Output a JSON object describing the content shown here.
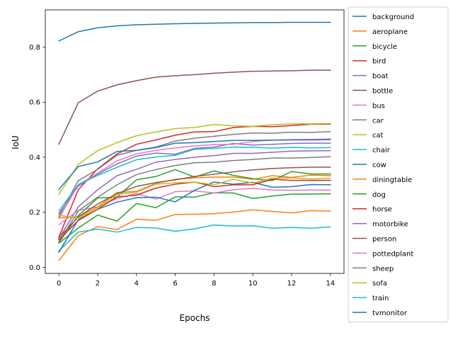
{
  "chart_data": {
    "type": "line",
    "xlabel": "Epochs",
    "ylabel": "IoU",
    "xlim": [
      -0.7,
      14.7
    ],
    "ylim": [
      -0.022,
      0.935
    ],
    "xticks": [
      0,
      2,
      4,
      6,
      8,
      10,
      12,
      14
    ],
    "yticks": [
      0.0,
      0.2,
      0.4,
      0.6,
      0.8
    ],
    "ytick_labels": [
      "0.0",
      "0.2",
      "0.4",
      "0.6",
      "0.8"
    ],
    "grid": false,
    "legend_position": "outside-right",
    "x": [
      0,
      1,
      2,
      3,
      4,
      5,
      6,
      7,
      8,
      9,
      10,
      11,
      12,
      13,
      14
    ],
    "series": [
      {
        "name": "background",
        "color": "#1f77b4",
        "values": [
          0.822,
          0.856,
          0.87,
          0.877,
          0.881,
          0.883,
          0.885,
          0.886,
          0.887,
          0.888,
          0.889,
          0.889,
          0.89,
          0.89,
          0.89
        ]
      },
      {
        "name": "aeroplane",
        "color": "#ff7f0e",
        "values": [
          0.025,
          0.115,
          0.148,
          0.137,
          0.175,
          0.171,
          0.192,
          0.193,
          0.195,
          0.201,
          0.209,
          0.203,
          0.198,
          0.206,
          0.204
        ]
      },
      {
        "name": "bicycle",
        "color": "#2ca02c",
        "values": [
          0.088,
          0.143,
          0.19,
          0.168,
          0.232,
          0.217,
          0.256,
          0.255,
          0.271,
          0.27,
          0.25,
          0.259,
          0.266,
          0.266,
          0.267
        ]
      },
      {
        "name": "bird",
        "color": "#d62728",
        "values": [
          0.11,
          0.282,
          0.358,
          0.412,
          0.447,
          0.463,
          0.48,
          0.492,
          0.493,
          0.508,
          0.512,
          0.511,
          0.515,
          0.52,
          0.52
        ]
      },
      {
        "name": "boat",
        "color": "#9467bd",
        "values": [
          0.105,
          0.22,
          0.282,
          0.333,
          0.356,
          0.382,
          0.392,
          0.4,
          0.406,
          0.414,
          0.414,
          0.418,
          0.422,
          0.423,
          0.424
        ]
      },
      {
        "name": "bottle",
        "color": "#8c564b",
        "values": [
          0.447,
          0.598,
          0.64,
          0.663,
          0.678,
          0.691,
          0.696,
          0.7,
          0.705,
          0.709,
          0.712,
          0.713,
          0.714,
          0.716,
          0.716
        ]
      },
      {
        "name": "bus",
        "color": "#e377c2",
        "values": [
          0.155,
          0.207,
          0.22,
          0.25,
          0.268,
          0.248,
          0.275,
          0.278,
          0.27,
          0.282,
          0.287,
          0.281,
          0.28,
          0.281,
          0.281
        ]
      },
      {
        "name": "car",
        "color": "#7f7f7f",
        "values": [
          0.092,
          0.205,
          0.255,
          0.3,
          0.337,
          0.355,
          0.37,
          0.38,
          0.382,
          0.388,
          0.392,
          0.397,
          0.397,
          0.399,
          0.402
        ]
      },
      {
        "name": "cat",
        "color": "#bcbd22",
        "values": [
          0.265,
          0.374,
          0.424,
          0.453,
          0.478,
          0.492,
          0.504,
          0.508,
          0.519,
          0.514,
          0.512,
          0.518,
          0.521,
          0.521,
          0.522
        ]
      },
      {
        "name": "chair",
        "color": "#17becf",
        "values": [
          0.06,
          0.128,
          0.139,
          0.128,
          0.145,
          0.143,
          0.131,
          0.14,
          0.154,
          0.15,
          0.151,
          0.142,
          0.145,
          0.142,
          0.147
        ]
      },
      {
        "name": "cow",
        "color": "#1f77b4",
        "values": [
          0.055,
          0.173,
          0.211,
          0.237,
          0.253,
          0.255,
          0.238,
          0.28,
          0.31,
          0.302,
          0.309,
          0.291,
          0.293,
          0.301,
          0.3
        ]
      },
      {
        "name": "diningtable",
        "color": "#ff7f0e",
        "values": [
          0.18,
          0.183,
          0.22,
          0.272,
          0.276,
          0.305,
          0.32,
          0.325,
          0.328,
          0.328,
          0.32,
          0.333,
          0.327,
          0.335,
          0.333
        ]
      },
      {
        "name": "dog",
        "color": "#2ca02c",
        "values": [
          0.09,
          0.188,
          0.252,
          0.255,
          0.318,
          0.33,
          0.355,
          0.328,
          0.35,
          0.334,
          0.322,
          0.315,
          0.348,
          0.339,
          0.339
        ]
      },
      {
        "name": "horse",
        "color": "#d62728",
        "values": [
          0.1,
          0.17,
          0.212,
          0.256,
          0.262,
          0.288,
          0.302,
          0.31,
          0.293,
          0.3,
          0.3,
          0.32,
          0.316,
          0.316,
          0.316
        ]
      },
      {
        "name": "motorbike",
        "color": "#9467bd",
        "values": [
          0.195,
          0.295,
          0.339,
          0.376,
          0.404,
          0.415,
          0.411,
          0.432,
          0.437,
          0.45,
          0.444,
          0.447,
          0.45,
          0.451,
          0.451
        ]
      },
      {
        "name": "person",
        "color": "#8c564b",
        "values": [
          0.108,
          0.183,
          0.23,
          0.268,
          0.294,
          0.308,
          0.318,
          0.33,
          0.338,
          0.347,
          0.354,
          0.359,
          0.362,
          0.364,
          0.364
        ]
      },
      {
        "name": "pottedplant",
        "color": "#e377c2",
        "values": [
          0.177,
          0.3,
          0.342,
          0.387,
          0.412,
          0.425,
          0.434,
          0.441,
          0.446,
          0.447,
          0.457,
          0.462,
          0.464,
          0.465,
          0.466
        ]
      },
      {
        "name": "sheep",
        "color": "#7f7f7f",
        "values": [
          0.185,
          0.315,
          0.356,
          0.407,
          0.425,
          0.437,
          0.459,
          0.469,
          0.476,
          0.483,
          0.488,
          0.487,
          0.491,
          0.49,
          0.493
        ]
      },
      {
        "name": "sofa",
        "color": "#bcbd22",
        "values": [
          0.19,
          0.178,
          0.214,
          0.265,
          0.273,
          0.302,
          0.307,
          0.31,
          0.3,
          0.32,
          0.306,
          0.324,
          0.325,
          0.321,
          0.324
        ]
      },
      {
        "name": "train",
        "color": "#17becf",
        "values": [
          0.205,
          0.3,
          0.334,
          0.363,
          0.391,
          0.401,
          0.407,
          0.429,
          0.432,
          0.437,
          0.436,
          0.433,
          0.436,
          0.434,
          0.435
        ]
      },
      {
        "name": "tvmonitor",
        "color": "#1f77b4",
        "values": [
          0.283,
          0.366,
          0.383,
          0.421,
          0.425,
          0.435,
          0.451,
          0.453,
          0.457,
          0.461,
          0.461,
          0.462,
          0.463,
          0.463,
          0.464
        ]
      }
    ]
  }
}
